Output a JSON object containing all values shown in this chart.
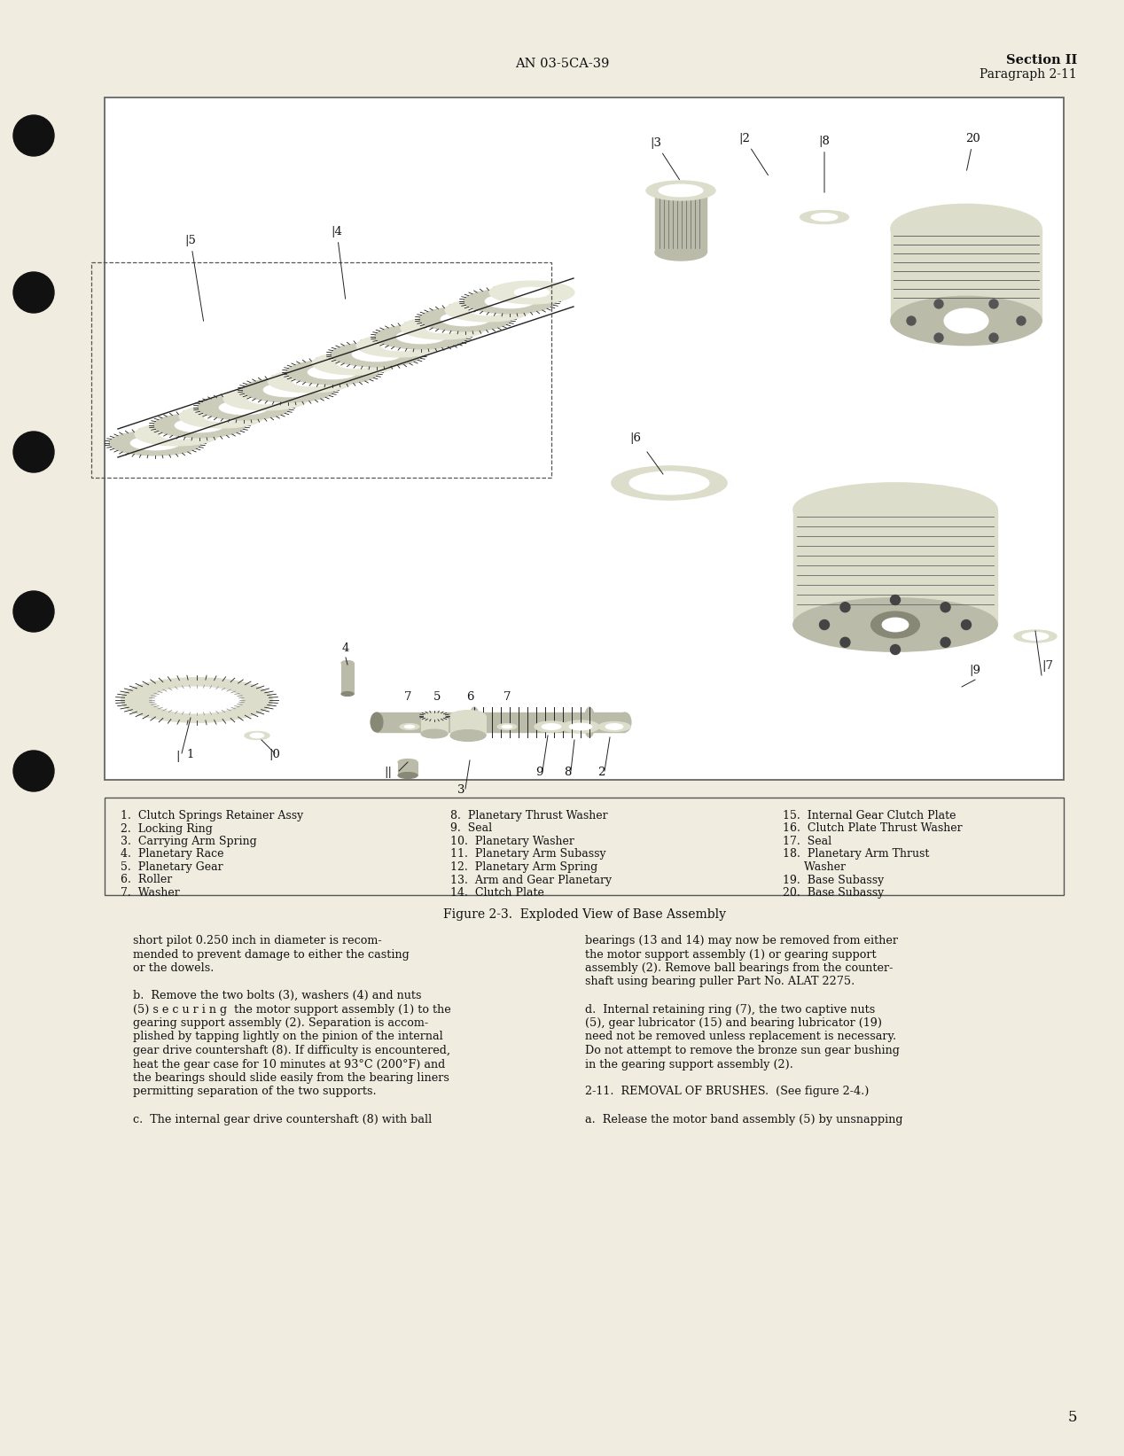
{
  "page_bg": "#f0ece0",
  "header_doc_number": "AN 03-5CA-39",
  "header_section": "Section II",
  "header_paragraph": "Paragraph 2-11",
  "figure_caption": "Figure 2-3.  Exploded View of Base Assembly",
  "page_number": "5",
  "legend_items_col1": [
    "1.  Clutch Springs Retainer Assy",
    "2.  Locking Ring",
    "3.  Carrying Arm Spring",
    "4.  Planetary Race",
    "5.  Planetary Gear",
    "6.  Roller",
    "7.  Washer"
  ],
  "legend_items_col2": [
    "8.  Planetary Thrust Washer",
    "9.  Seal",
    "10.  Planetary Washer",
    "11.  Planetary Arm Subassy",
    "12.  Planetary Arm Spring",
    "13.  Arm and Gear Planetary",
    "14.  Clutch Plate"
  ],
  "legend_items_col3": [
    "15.  Internal Gear Clutch Plate",
    "16.  Clutch Plate Thrust Washer",
    "17.  Seal",
    "18.  Planetary Arm Thrust",
    "      Washer",
    "19.  Base Subassy",
    "20.  Base Subassy"
  ],
  "text_color": "#111111",
  "page_bg_light": "#f8f5ee",
  "border_color": "#666666",
  "legend_bg": "#f0ece0",
  "box_border": "#555555",
  "hole_color": "#111111",
  "draw_line_color": "#222222",
  "draw_fill_light": "#ddddcc",
  "draw_fill_mid": "#bbbbaa",
  "draw_fill_dark": "#888877"
}
